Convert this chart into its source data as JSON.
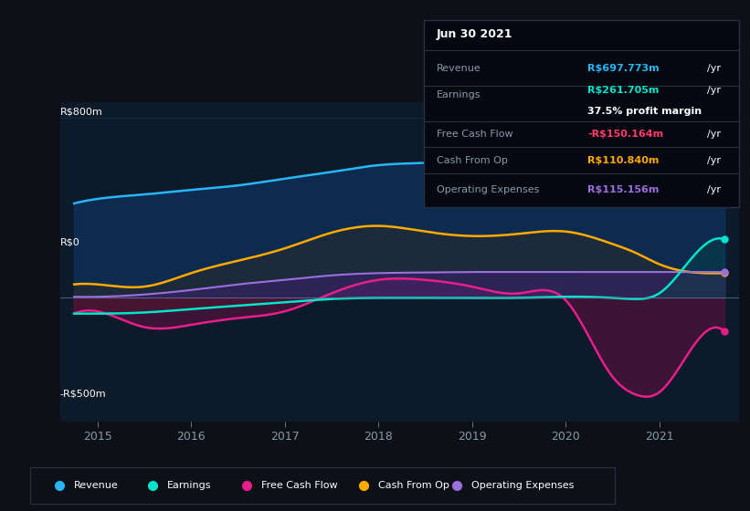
{
  "bg_color": "#0d1117",
  "plot_bg_color": "#0d1a2a",
  "ylabel_top": "R$800m",
  "ylabel_zero": "R$0",
  "ylabel_bottom": "-R$500m",
  "ylim": [
    -550,
    870
  ],
  "xlim": [
    2014.6,
    2021.85
  ],
  "xticks": [
    2015,
    2016,
    2017,
    2018,
    2019,
    2020,
    2021
  ],
  "info_box": {
    "date": "Jun 30 2021",
    "revenue_label": "Revenue",
    "revenue_value": "R$697.773m",
    "revenue_color": "#29b6f6",
    "earnings_label": "Earnings",
    "earnings_value": "R$261.705m",
    "earnings_color": "#00e5cc",
    "profit_margin": "37.5% profit margin",
    "fcf_label": "Free Cash Flow",
    "fcf_value": "-R$150.164m",
    "fcf_color": "#ff3d6b",
    "cashop_label": "Cash From Op",
    "cashop_value": "R$110.840m",
    "cashop_color": "#ffaa00",
    "opex_label": "Operating Expenses",
    "opex_value": "R$115.156m",
    "opex_color": "#9c6fde"
  },
  "legend": [
    {
      "label": "Revenue",
      "color": "#29b6f6"
    },
    {
      "label": "Earnings",
      "color": "#00e5cc"
    },
    {
      "label": "Free Cash Flow",
      "color": "#e91e8c"
    },
    {
      "label": "Cash From Op",
      "color": "#ffaa00"
    },
    {
      "label": "Operating Expenses",
      "color": "#9c6fde"
    }
  ],
  "x_knots": [
    2014.75,
    2015.0,
    2015.5,
    2016.0,
    2016.5,
    2017.0,
    2017.5,
    2018.0,
    2018.5,
    2019.0,
    2019.5,
    2020.0,
    2020.5,
    2020.75,
    2021.0,
    2021.5,
    2021.7
  ],
  "revenue": [
    420,
    440,
    460,
    480,
    500,
    530,
    560,
    590,
    600,
    610,
    630,
    660,
    640,
    620,
    590,
    690,
    700
  ],
  "earnings": [
    -70,
    -70,
    -65,
    -50,
    -35,
    -20,
    -5,
    0,
    0,
    0,
    0,
    5,
    0,
    -5,
    20,
    240,
    260
  ],
  "free_cash_flow": [
    -70,
    -60,
    -130,
    -120,
    -90,
    -60,
    20,
    80,
    80,
    50,
    20,
    -10,
    -350,
    -430,
    -420,
    -150,
    -150
  ],
  "cash_from_op": [
    60,
    60,
    50,
    110,
    165,
    220,
    290,
    320,
    295,
    275,
    285,
    295,
    240,
    200,
    150,
    110,
    110
  ],
  "operating_expenses": [
    5,
    5,
    15,
    35,
    60,
    80,
    100,
    110,
    113,
    115,
    115,
    115,
    115,
    115,
    115,
    115,
    115
  ]
}
